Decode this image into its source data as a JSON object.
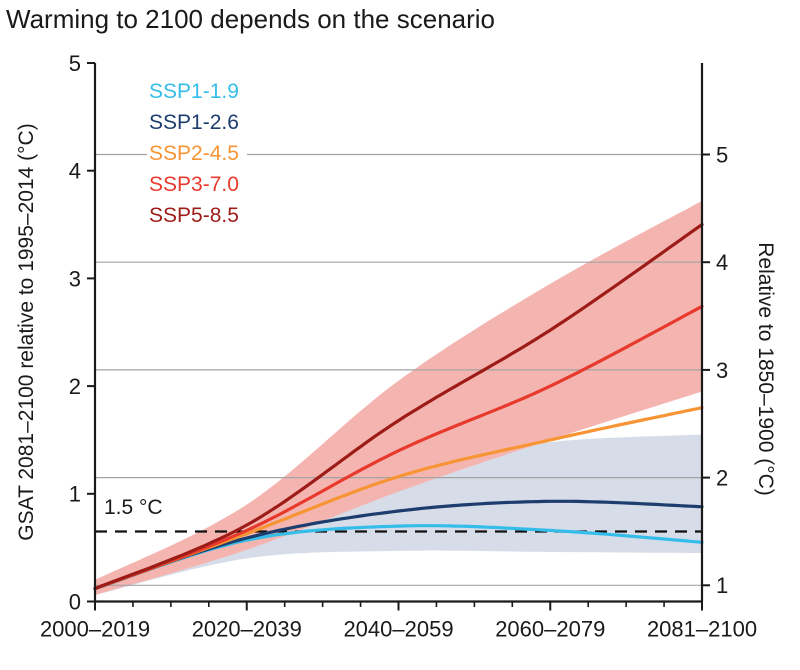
{
  "title": "Warming to 2100 depends on the scenario",
  "axes": {
    "left_label": "GSAT 2081–2100 relative to 1995–2014 (°C)",
    "right_label": "Relative to 1850–1900 (°C)",
    "left_tick_labels": [
      "0",
      "1",
      "2",
      "3",
      "4",
      "5"
    ],
    "right_tick_labels": [
      "1",
      "2",
      "3",
      "4",
      "5"
    ],
    "x_labels": [
      "2000–2019",
      "2020–2039",
      "2040–2059",
      "2060–2079",
      "2081–2100"
    ]
  },
  "threshold": {
    "label": "1.5 °C"
  },
  "colors": {
    "spine": "#1a1a1a",
    "gridline": "#a3a3a3",
    "threshold_line": "#111111",
    "ssp370_band": "#f4b5b1",
    "ssp126_band": "#d7dde8"
  },
  "chart_data": {
    "type": "line",
    "title": "Warming to 2100 depends on the scenario",
    "categories": [
      "2000–2019",
      "2020–2039",
      "2040–2059",
      "2060–2079",
      "2081–2100"
    ],
    "ylabel_left": "GSAT 2081–2100 relative to 1995–2014 (°C)",
    "ylabel_right": "Relative to 1850–1900 (°C)",
    "ylim_left": [
      0,
      5
    ],
    "yticks_left": [
      0,
      1,
      2,
      3,
      4,
      5
    ],
    "yticks_right": [
      1,
      2,
      3,
      4,
      5
    ],
    "right_axis_offset_from_left": 0.85,
    "grid": "horizontal gridlines at right-axis integer levels",
    "legend_position": "upper-left inside plot, white background, colored text only",
    "threshold_line": {
      "label": "1.5 °C",
      "value_left_axis": 0.65,
      "value_right_axis": 1.5,
      "style": "dashed black"
    },
    "x_minor_ticks_between_majors": 3,
    "series": [
      {
        "name": "SSP1-1.9",
        "color": "#35bde9",
        "values_left_axis": [
          0.12,
          0.57,
          0.7,
          0.66,
          0.55
        ]
      },
      {
        "name": "SSP1-2.6",
        "color": "#1d3d6e",
        "values_left_axis": [
          0.12,
          0.59,
          0.84,
          0.93,
          0.88
        ],
        "band": {
          "lower": [
            0.06,
            0.4,
            0.47,
            0.46,
            0.45
          ],
          "upper": [
            0.19,
            0.78,
            1.25,
            1.48,
            1.55
          ],
          "color": "#d7dde8"
        }
      },
      {
        "name": "SSP2-4.5",
        "color": "#f79433",
        "values_left_axis": [
          0.12,
          0.63,
          1.16,
          1.5,
          1.8
        ]
      },
      {
        "name": "SSP3-7.0",
        "color": "#e8392d",
        "values_left_axis": [
          0.12,
          0.66,
          1.4,
          2.0,
          2.74
        ],
        "band": {
          "lower": [
            0.06,
            0.48,
            1.02,
            1.5,
            1.95
          ],
          "upper": [
            0.2,
            0.9,
            2.05,
            2.95,
            3.72
          ],
          "color": "#f4b5b1"
        }
      },
      {
        "name": "SSP5-8.5",
        "color": "#9e1c17",
        "values_left_axis": [
          0.12,
          0.71,
          1.68,
          2.52,
          3.5
        ]
      }
    ]
  }
}
